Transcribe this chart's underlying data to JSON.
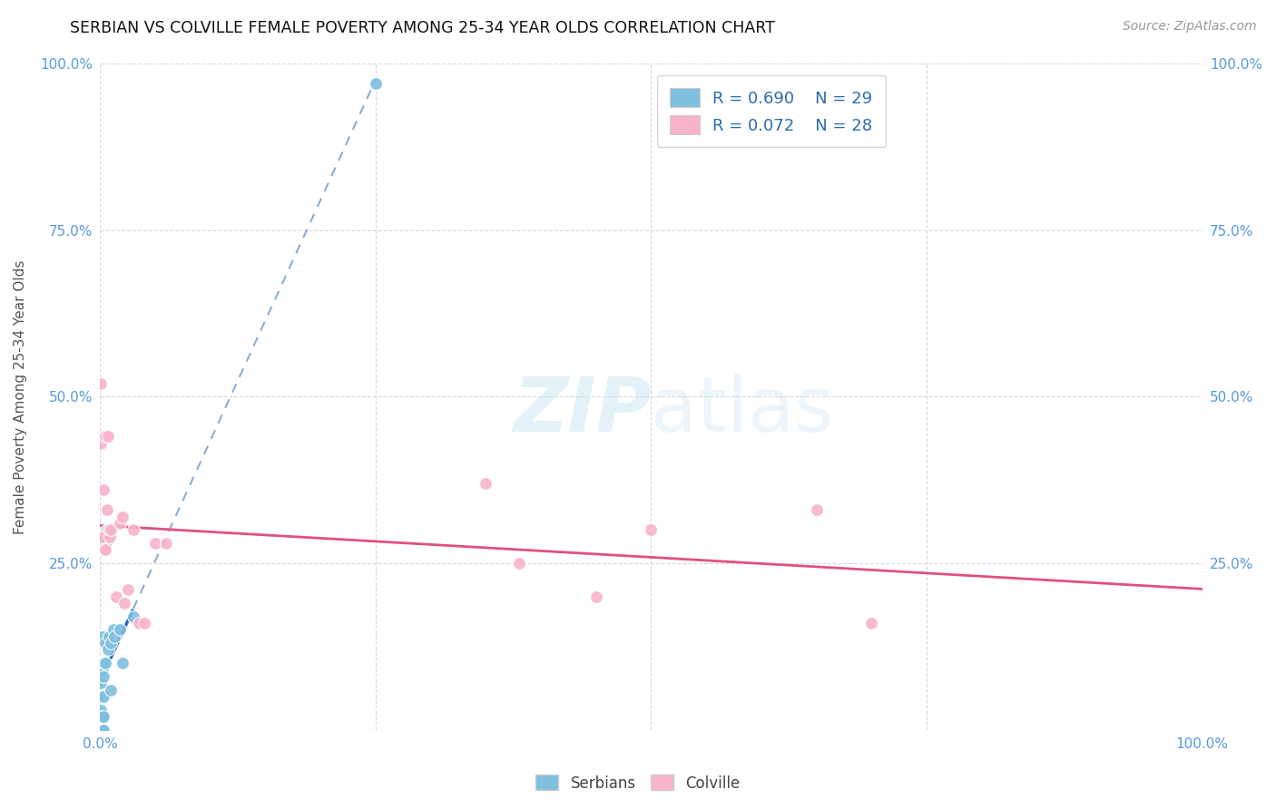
{
  "title": "SERBIAN VS COLVILLE FEMALE POVERTY AMONG 25-34 YEAR OLDS CORRELATION CHART",
  "source": "Source: ZipAtlas.com",
  "ylabel": "Female Poverty Among 25-34 Year Olds",
  "xlim": [
    0,
    1.0
  ],
  "ylim": [
    0,
    1.0
  ],
  "serbian_color": "#7fbfdf",
  "colville_color": "#f8b4c8",
  "serbian_line_color": "#2b6cb0",
  "colville_line_color": "#e05080",
  "legend_text_color": "#2b6cb0",
  "axis_label_color": "#5599dd",
  "R_serbian": 0.69,
  "N_serbian": 29,
  "R_colville": 0.072,
  "N_colville": 28,
  "serbian_x": [
    0.001,
    0.001,
    0.001,
    0.001,
    0.001,
    0.002,
    0.002,
    0.002,
    0.002,
    0.002,
    0.003,
    0.003,
    0.003,
    0.003,
    0.004,
    0.005,
    0.005,
    0.005,
    0.006,
    0.007,
    0.008,
    0.01,
    0.01,
    0.012,
    0.013,
    0.018,
    0.02,
    0.03,
    0.25
  ],
  "serbian_y": [
    0.0,
    0.02,
    0.03,
    0.05,
    0.07,
    0.0,
    0.02,
    0.05,
    0.09,
    0.14,
    0.0,
    0.02,
    0.05,
    0.08,
    0.1,
    0.1,
    0.13,
    0.28,
    0.3,
    0.12,
    0.14,
    0.06,
    0.13,
    0.15,
    0.14,
    0.15,
    0.1,
    0.17,
    0.97
  ],
  "colville_x": [
    0.001,
    0.001,
    0.002,
    0.003,
    0.004,
    0.005,
    0.005,
    0.006,
    0.007,
    0.008,
    0.009,
    0.01,
    0.015,
    0.018,
    0.02,
    0.022,
    0.025,
    0.03,
    0.035,
    0.04,
    0.05,
    0.06,
    0.35,
    0.38,
    0.45,
    0.5,
    0.65,
    0.7
  ],
  "colville_y": [
    0.43,
    0.52,
    0.29,
    0.36,
    0.27,
    0.27,
    0.44,
    0.33,
    0.44,
    0.3,
    0.29,
    0.3,
    0.2,
    0.31,
    0.32,
    0.19,
    0.21,
    0.3,
    0.16,
    0.16,
    0.28,
    0.28,
    0.37,
    0.25,
    0.2,
    0.3,
    0.33,
    0.16
  ],
  "background_color": "#ffffff",
  "grid_color": "#d8d8d8",
  "title_fontsize": 12.5,
  "label_fontsize": 11,
  "tick_fontsize": 11,
  "legend_fontsize": 13
}
